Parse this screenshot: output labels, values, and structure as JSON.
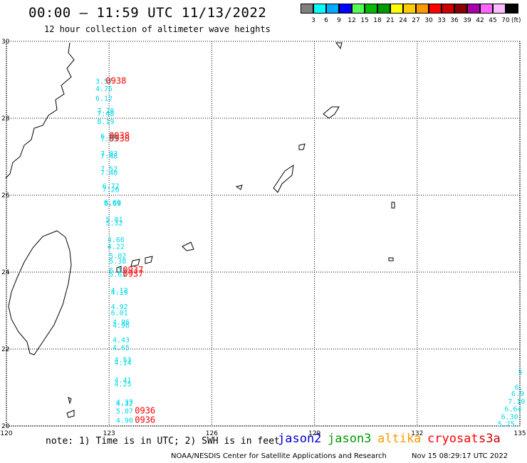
{
  "title": "00:00 – 11:59 UTC 11/13/2022",
  "subtitle": "12 hour collection of altimeter wave heights",
  "legend": {
    "colors": [
      "#808080",
      "#00ffff",
      "#00aaff",
      "#0000ff",
      "#55ff55",
      "#00bb00",
      "#009900",
      "#ffff00",
      "#ffcc00",
      "#ff9900",
      "#ff0000",
      "#cc0000",
      "#880000",
      "#aa00aa",
      "#ff66ff",
      "#ffbbff",
      "#000000"
    ],
    "labels": [
      "3",
      "6",
      "9",
      "12",
      "15",
      "18",
      "21",
      "24",
      "27",
      "30",
      "33",
      "36",
      "39",
      "42",
      "45",
      "70"
    ],
    "unit": "(ft)"
  },
  "map": {
    "lon_ticks": [
      "120",
      "123",
      "126",
      "129",
      "132",
      "135"
    ],
    "lat_ticks": [
      "30",
      "28",
      "26",
      "24",
      "22",
      "20"
    ],
    "lon_range": [
      120,
      135
    ],
    "lat_range": [
      20,
      30
    ],
    "grid": true,
    "swh_color": "#00d8e8",
    "time_color": "#ff0000"
  },
  "swh_labels": [
    {
      "text": "3.57",
      "lon": 122.6,
      "lat": 28.9
    },
    {
      "text": "4.76",
      "lon": 122.6,
      "lat": 28.7
    },
    {
      "text": "6.12",
      "lon": 122.6,
      "lat": 28.45
    },
    {
      "text": "7.28",
      "lon": 122.65,
      "lat": 28.13
    },
    {
      "text": "7.48",
      "lon": 122.65,
      "lat": 28.06
    },
    {
      "text": "8.19",
      "lon": 122.65,
      "lat": 27.85
    },
    {
      "text": "6.46",
      "lon": 122.75,
      "lat": 27.47
    },
    {
      "text": "7.55",
      "lon": 122.75,
      "lat": 27.4
    },
    {
      "text": "7.83",
      "lon": 122.75,
      "lat": 27.02
    },
    {
      "text": "7.48",
      "lon": 122.75,
      "lat": 26.95
    },
    {
      "text": "7.52",
      "lon": 122.75,
      "lat": 26.62
    },
    {
      "text": "7.40",
      "lon": 122.75,
      "lat": 26.52
    },
    {
      "text": "6.72",
      "lon": 122.8,
      "lat": 26.18
    },
    {
      "text": "7.26",
      "lon": 122.8,
      "lat": 26.08
    },
    {
      "text": "6.69",
      "lon": 122.85,
      "lat": 25.75
    },
    {
      "text": "6.69",
      "lon": 122.85,
      "lat": 25.72
    },
    {
      "text": "5.01",
      "lon": 122.9,
      "lat": 25.31
    },
    {
      "text": "5.32",
      "lon": 122.9,
      "lat": 25.21
    },
    {
      "text": "4.66",
      "lon": 122.95,
      "lat": 24.78
    },
    {
      "text": "4.22",
      "lon": 122.95,
      "lat": 24.6
    },
    {
      "text": "5.02",
      "lon": 123.0,
      "lat": 24.36
    },
    {
      "text": "5.38",
      "lon": 123.0,
      "lat": 24.22
    },
    {
      "text": "6.13",
      "lon": 123.0,
      "lat": 23.98
    },
    {
      "text": "5.63",
      "lon": 123.0,
      "lat": 23.88
    },
    {
      "text": "4.12",
      "lon": 123.05,
      "lat": 23.46
    },
    {
      "text": "4.19",
      "lon": 123.05,
      "lat": 23.41
    },
    {
      "text": "4.92",
      "lon": 123.05,
      "lat": 23.04
    },
    {
      "text": "6.01",
      "lon": 123.05,
      "lat": 22.88
    },
    {
      "text": "4.96",
      "lon": 123.1,
      "lat": 22.64
    },
    {
      "text": "4.96",
      "lon": 123.1,
      "lat": 22.56
    },
    {
      "text": "4.43",
      "lon": 123.1,
      "lat": 22.18
    },
    {
      "text": "4.65",
      "lon": 123.1,
      "lat": 21.97
    },
    {
      "text": "4.53",
      "lon": 123.15,
      "lat": 21.66
    },
    {
      "text": "4.14",
      "lon": 123.15,
      "lat": 21.58
    },
    {
      "text": "4.41",
      "lon": 123.15,
      "lat": 21.13
    },
    {
      "text": "4.25",
      "lon": 123.15,
      "lat": 21.03
    },
    {
      "text": "4.37",
      "lon": 123.2,
      "lat": 20.56
    },
    {
      "text": "4.32",
      "lon": 123.2,
      "lat": 20.52
    },
    {
      "text": "5.07",
      "lon": 123.2,
      "lat": 20.32
    },
    {
      "text": "4.90",
      "lon": 123.2,
      "lat": 20.08
    },
    {
      "text": "5",
      "lon": 134.95,
      "lat": 21.33
    },
    {
      "text": "6.",
      "lon": 134.85,
      "lat": 20.94
    },
    {
      "text": "6.9",
      "lon": 134.75,
      "lat": 20.78
    },
    {
      "text": "7.10",
      "lon": 134.65,
      "lat": 20.57
    },
    {
      "text": "6.64",
      "lon": 134.55,
      "lat": 20.38
    },
    {
      "text": "6.30",
      "lon": 134.45,
      "lat": 20.18
    },
    {
      "text": "5.75",
      "lon": 134.35,
      "lat": 19.99
    }
  ],
  "time_labels": [
    {
      "text": "0938",
      "lon": 122.9,
      "lat": 28.9
    },
    {
      "text": "0938",
      "lon": 123.0,
      "lat": 27.47
    },
    {
      "text": "0938",
      "lon": 123.0,
      "lat": 27.4
    },
    {
      "text": "0937",
      "lon": 123.4,
      "lat": 23.98
    },
    {
      "text": "0937",
      "lon": 123.4,
      "lat": 23.88
    },
    {
      "text": "0936",
      "lon": 123.75,
      "lat": 20.32
    },
    {
      "text": "0936",
      "lon": 123.75,
      "lat": 20.08
    }
  ],
  "note": "note: 1) Time is in UTC; 2) SWH is in feet",
  "satellites": [
    {
      "name": "jason2",
      "color": "#0000cc"
    },
    {
      "name": "jason3",
      "color": "#009900"
    },
    {
      "name": "altika",
      "color": "#ff9900"
    },
    {
      "name": "cryosat",
      "color": "#ff0000"
    },
    {
      "name": "s3a",
      "color": "#cc0000"
    }
  ],
  "footer_left": "NOAA/NESDIS Center for Satellite Applications and Research",
  "footer_right": "Nov 15 08:29:17 UTC 2022"
}
